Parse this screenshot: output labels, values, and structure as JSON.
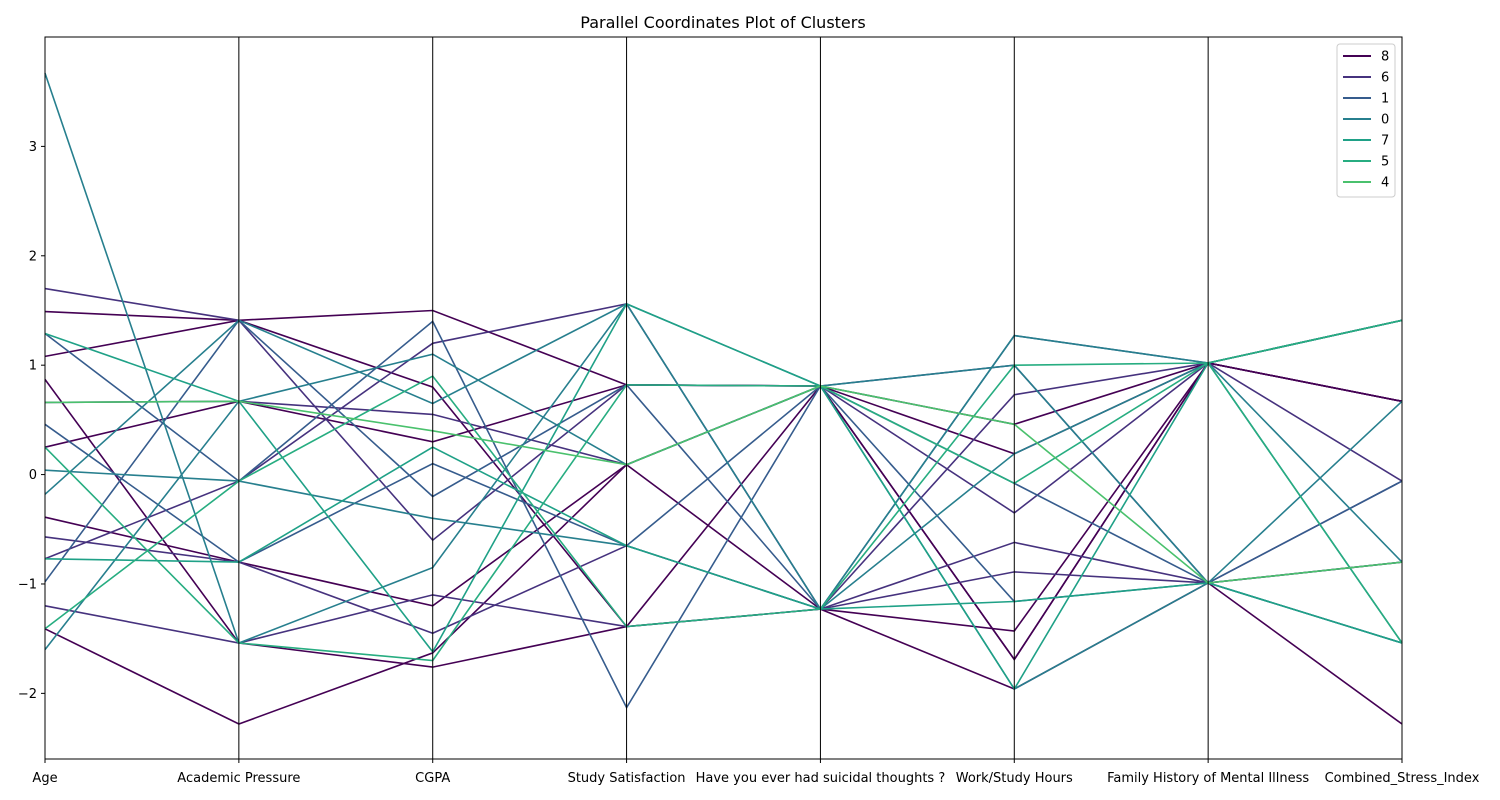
{
  "chart_data": {
    "type": "parallel_coordinates",
    "title": "Parallel Coordinates Plot of Clusters",
    "axes": [
      "Age",
      "Academic Pressure",
      "CGPA",
      "Study Satisfaction",
      "Have you ever had suicidal thoughts ?",
      "Work/Study Hours",
      "Family History of Mental Illness",
      "Combined_Stress_Index"
    ],
    "ylim": [
      -2.6,
      4.0
    ],
    "yticks": [
      -2,
      -1,
      0,
      1,
      2,
      3
    ],
    "ytick_labels": [
      "−2",
      "−1",
      "0",
      "1",
      "2",
      "3"
    ],
    "grid": false,
    "legend_position": "top-right",
    "legend": [
      {
        "label": "8",
        "color": "#440154"
      },
      {
        "label": "6",
        "color": "#46327e"
      },
      {
        "label": "1",
        "color": "#365c8d"
      },
      {
        "label": "0",
        "color": "#277f8e"
      },
      {
        "label": "7",
        "color": "#1fa187"
      },
      {
        "label": "5",
        "color": "#27ad81"
      },
      {
        "label": "4",
        "color": "#4ac16d"
      }
    ],
    "series": [
      {
        "cluster": "8",
        "color": "#440154",
        "values": [
          1.49,
          1.41,
          1.5,
          0.82,
          0.81,
          0.46,
          1.02,
          0.67
        ]
      },
      {
        "cluster": "8",
        "color": "#440154",
        "values": [
          0.87,
          -1.54,
          -1.76,
          -1.39,
          -1.23,
          -1.96,
          -0.99,
          -2.28
        ]
      },
      {
        "cluster": "8",
        "color": "#440154",
        "values": [
          -1.41,
          -2.28,
          -1.63,
          0.09,
          0.81,
          -1.69,
          1.02,
          0.67
        ]
      },
      {
        "cluster": "8",
        "color": "#440154",
        "values": [
          0.25,
          0.67,
          0.3,
          0.82,
          0.81,
          0.19,
          1.02,
          0.67
        ]
      },
      {
        "cluster": "8",
        "color": "#440154",
        "values": [
          -0.39,
          -0.8,
          -1.2,
          0.09,
          -1.23,
          -1.43,
          1.02,
          1.41
        ]
      },
      {
        "cluster": "8",
        "color": "#440154",
        "values": [
          1.08,
          1.41,
          0.8,
          -1.39,
          0.81,
          -1.69,
          1.02,
          0.67
        ]
      },
      {
        "cluster": "6",
        "color": "#46327e",
        "values": [
          -0.77,
          -0.06,
          1.2,
          1.56,
          -1.23,
          0.73,
          1.02,
          -0.06
        ]
      },
      {
        "cluster": "6",
        "color": "#46327e",
        "values": [
          1.7,
          1.41,
          -0.6,
          0.82,
          0.81,
          1.0,
          -0.99,
          -0.8
        ]
      },
      {
        "cluster": "6",
        "color": "#46327e",
        "values": [
          -0.57,
          -0.8,
          -1.45,
          -0.65,
          -1.23,
          -0.89,
          -0.99,
          -0.06
        ]
      },
      {
        "cluster": "6",
        "color": "#46327e",
        "values": [
          0.66,
          0.67,
          0.55,
          0.09,
          0.81,
          -0.35,
          1.02,
          1.41
        ]
      },
      {
        "cluster": "6",
        "color": "#46327e",
        "values": [
          -1.2,
          -1.54,
          -1.1,
          -1.39,
          -1.23,
          -0.62,
          -0.99,
          -0.8
        ]
      },
      {
        "cluster": "1",
        "color": "#365c8d",
        "values": [
          1.29,
          -0.06,
          1.4,
          -2.13,
          0.81,
          -0.08,
          -0.99,
          -1.54
        ]
      },
      {
        "cluster": "1",
        "color": "#365c8d",
        "values": [
          -0.98,
          1.41,
          -0.2,
          0.82,
          -1.23,
          1.27,
          1.02,
          1.41
        ]
      },
      {
        "cluster": "1",
        "color": "#365c8d",
        "values": [
          0.46,
          -0.8,
          0.1,
          -0.65,
          0.81,
          -1.16,
          -0.99,
          -0.06
        ]
      },
      {
        "cluster": "0",
        "color": "#277f8e",
        "values": [
          3.67,
          -1.54,
          -0.85,
          1.56,
          -1.23,
          1.27,
          1.02,
          -1.54
        ]
      },
      {
        "cluster": "0",
        "color": "#277f8e",
        "values": [
          -1.6,
          0.67,
          1.1,
          0.09,
          0.81,
          -1.96,
          -0.99,
          0.67
        ]
      },
      {
        "cluster": "0",
        "color": "#277f8e",
        "values": [
          0.04,
          -0.06,
          -0.4,
          -0.65,
          -1.23,
          0.19,
          1.02,
          -0.8
        ]
      },
      {
        "cluster": "0",
        "color": "#277f8e",
        "values": [
          -0.18,
          1.41,
          0.65,
          1.56,
          0.81,
          1.0,
          -0.99,
          -1.54
        ]
      },
      {
        "cluster": "7",
        "color": "#1fa187",
        "values": [
          1.29,
          0.67,
          -1.62,
          1.56,
          0.81,
          -1.96,
          1.02,
          1.41
        ]
      },
      {
        "cluster": "7",
        "color": "#1fa187",
        "values": [
          -0.77,
          -0.8,
          0.25,
          -0.65,
          -1.23,
          -1.16,
          -0.99,
          -1.54
        ]
      },
      {
        "cluster": "5",
        "color": "#27ad81",
        "values": [
          0.25,
          -1.54,
          -1.7,
          0.82,
          0.81,
          -0.08,
          1.02,
          1.41
        ]
      },
      {
        "cluster": "5",
        "color": "#27ad81",
        "values": [
          -1.41,
          -0.06,
          0.9,
          -1.39,
          -1.23,
          1.0,
          1.02,
          -1.54
        ]
      },
      {
        "cluster": "4",
        "color": "#4ac16d",
        "values": [
          0.66,
          0.67,
          0.4,
          0.09,
          0.81,
          0.46,
          -0.99,
          -0.8
        ]
      }
    ]
  }
}
